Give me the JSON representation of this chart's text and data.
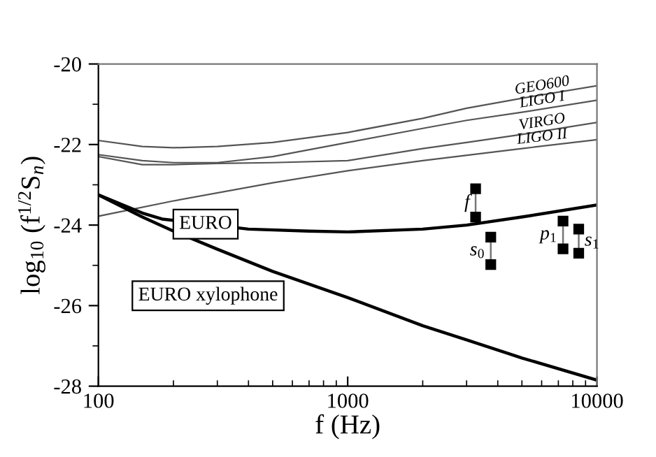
{
  "chart_data": {
    "type": "line",
    "xlabel": "f (Hz)",
    "ylabel": "log$_{10}$ (f$^{1/2}$S$_{n}$)",
    "log": "x",
    "xlim": [
      100,
      10000
    ],
    "xticks": [
      100,
      1000,
      10000
    ],
    "ylim": [
      -28,
      -20
    ],
    "yticks": [
      -28,
      -26,
      -24,
      -22,
      -20
    ],
    "grid": false,
    "legend": false,
    "series": [
      {
        "name": "GEO600",
        "color": "#555555",
        "x": [
          100,
          150,
          200,
          300,
          500,
          1000,
          2000,
          3000,
          5000,
          10000
        ],
        "values": [
          -21.9,
          -22.05,
          -22.08,
          -22.05,
          -21.95,
          -21.7,
          -21.35,
          -21.1,
          -20.85,
          -20.54
        ]
      },
      {
        "name": "LIGO I",
        "color": "#555555",
        "x": [
          100,
          150,
          200,
          300,
          500,
          1000,
          2000,
          3000,
          5000,
          10000
        ],
        "values": [
          -22.25,
          -22.4,
          -22.45,
          -22.45,
          -22.3,
          -21.95,
          -21.6,
          -21.4,
          -21.2,
          -20.9
        ]
      },
      {
        "name": "VIRGO",
        "color": "#555555",
        "x": [
          100,
          150,
          200,
          300,
          500,
          1000,
          2000,
          3000,
          5000,
          10000
        ],
        "values": [
          -22.3,
          -22.5,
          -22.5,
          -22.47,
          -22.45,
          -22.4,
          -22.1,
          -21.95,
          -21.75,
          -21.45
        ]
      },
      {
        "name": "LIGO II",
        "color": "#555555",
        "x": [
          100,
          200,
          500,
          1000,
          2000,
          5000,
          10000
        ],
        "values": [
          -23.78,
          -23.4,
          -22.95,
          -22.65,
          -22.4,
          -22.1,
          -21.88
        ]
      },
      {
        "name": "EURO",
        "color": "#000000",
        "x": [
          100,
          150,
          180,
          400,
          700,
          1000,
          2000,
          3000,
          5000,
          10000
        ],
        "values": [
          -23.25,
          -23.7,
          -23.85,
          -24.1,
          -24.15,
          -24.17,
          -24.1,
          -24.0,
          -23.8,
          -23.5
        ]
      },
      {
        "name": "EURO xylophone",
        "color": "#000000",
        "x": [
          100,
          150,
          200,
          300,
          500,
          1000,
          2000,
          3000,
          5000,
          10000
        ],
        "values": [
          -23.25,
          -23.8,
          -24.15,
          -24.6,
          -25.15,
          -25.8,
          -26.5,
          -26.85,
          -27.3,
          -27.85
        ]
      },
      {
        "name": "f",
        "color": "#000000",
        "marker": "square",
        "x": [
          3260,
          3260
        ],
        "values": [
          -23.1,
          -23.8
        ]
      },
      {
        "name": "s$_{0}$",
        "color": "#000000",
        "marker": "square",
        "x": [
          3750,
          3750
        ],
        "values": [
          -24.3,
          -24.98
        ]
      },
      {
        "name": "p$_{1}$",
        "color": "#000000",
        "marker": "square",
        "x": [
          7310,
          7310
        ],
        "values": [
          -23.9,
          -24.59
        ]
      },
      {
        "name": "s$_{1}$",
        "color": "#000000",
        "marker": "square",
        "x": [
          8450,
          8450
        ],
        "values": [
          -24.1,
          -24.7
        ]
      }
    ]
  }
}
